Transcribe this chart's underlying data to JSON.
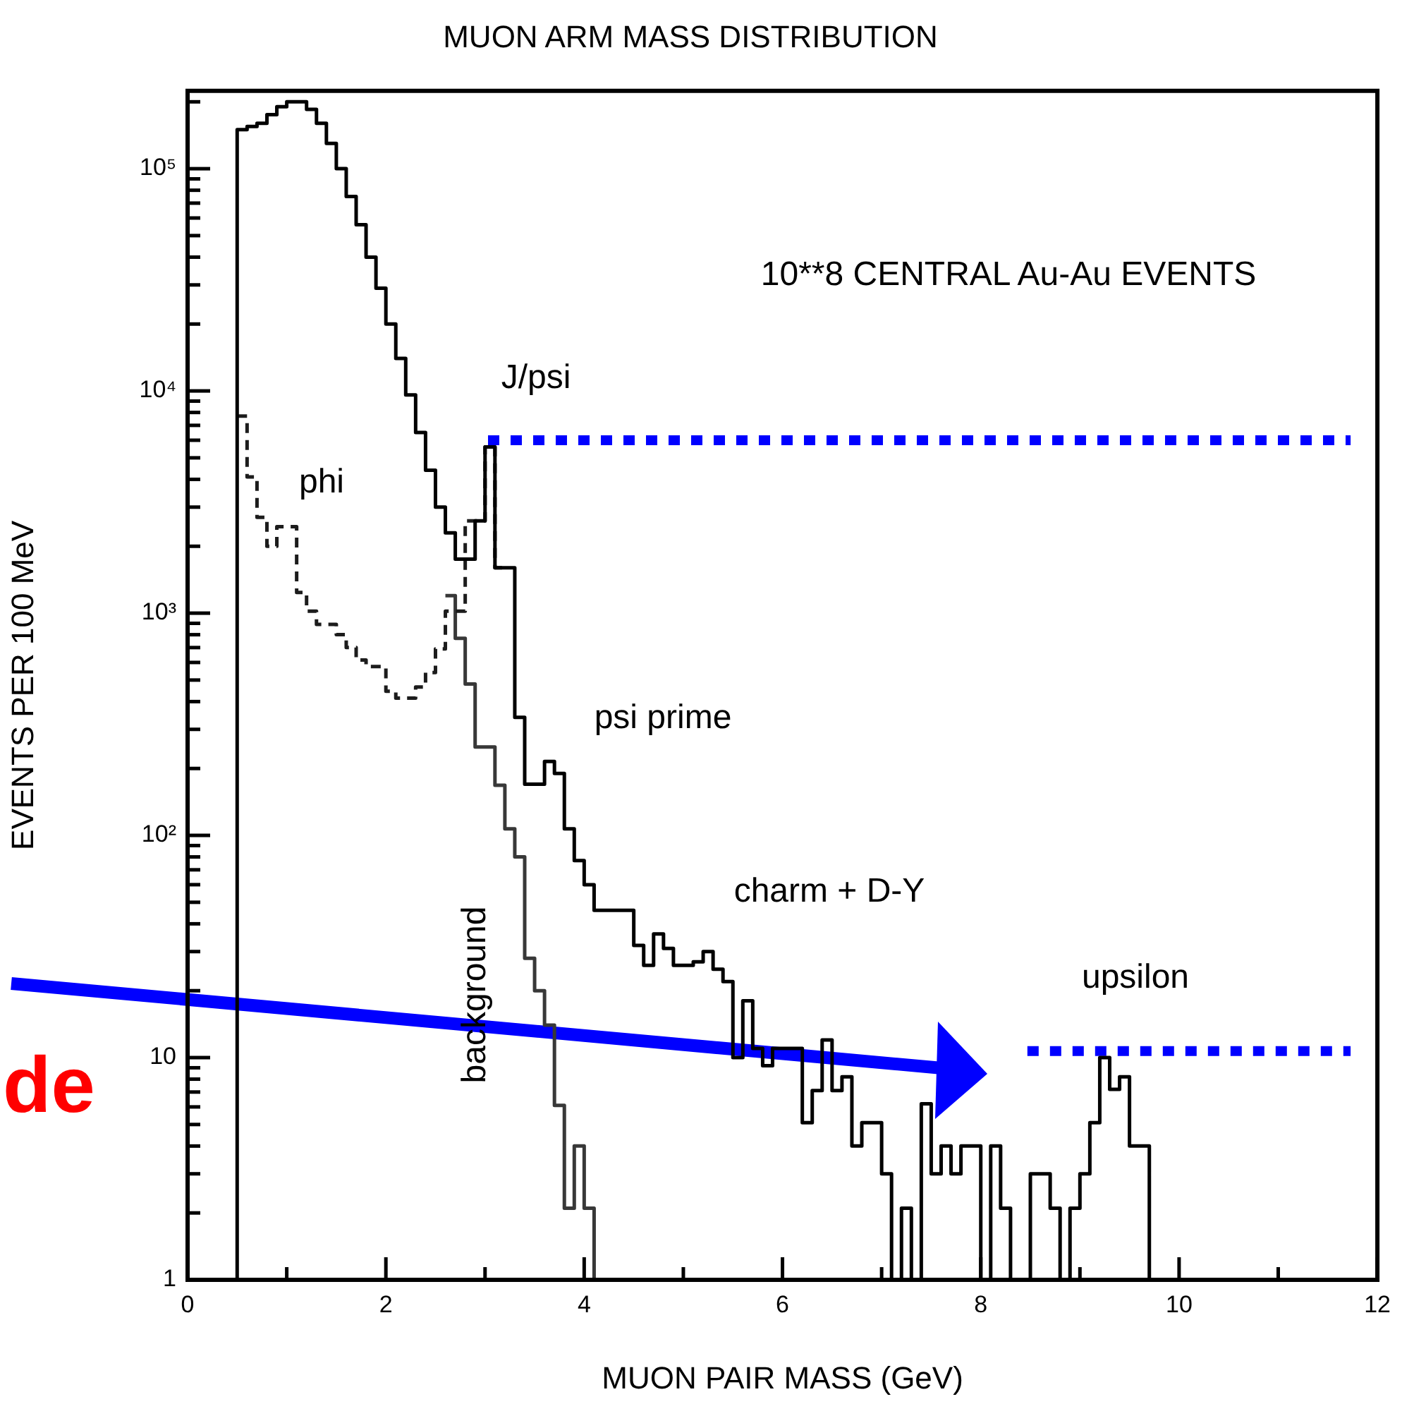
{
  "chart_data": {
    "type": "histogram",
    "title": "MUON ARM MASS DISTRIBUTION",
    "xlabel": "MUON PAIR MASS (GeV)",
    "ylabel": "EVENTS PER 100 MeV",
    "log": "y",
    "xlim": [
      0,
      12
    ],
    "ylim": [
      1,
      224000
    ],
    "xticks": [
      0,
      {
        "value": 1,
        "label": null
      },
      2,
      {
        "value": 3,
        "label": null
      },
      4,
      {
        "value": 5,
        "label": null
      },
      6,
      {
        "value": 7,
        "label": null
      },
      8,
      {
        "value": 9,
        "label": null
      },
      10,
      {
        "value": 11,
        "label": null
      },
      12
    ],
    "yticks": [
      1,
      {
        "value": 2,
        "label": null
      },
      {
        "value": 3,
        "label": null
      },
      {
        "value": 4,
        "label": null
      },
      {
        "value": 5,
        "label": null
      },
      {
        "value": 6,
        "label": null
      },
      {
        "value": 7,
        "label": null
      },
      {
        "value": 8,
        "label": null
      },
      {
        "value": 9,
        "label": null
      },
      10,
      {
        "value": 20,
        "label": null
      },
      {
        "value": 30,
        "label": null
      },
      {
        "value": 40,
        "label": null
      },
      {
        "value": 50,
        "label": null
      },
      {
        "value": 60,
        "label": null
      },
      {
        "value": 70,
        "label": null
      },
      {
        "value": 80,
        "label": null
      },
      {
        "value": 90,
        "label": null
      },
      {
        "value": 100,
        "label": "10²"
      },
      {
        "value": 200,
        "label": null
      },
      {
        "value": 300,
        "label": null
      },
      {
        "value": 400,
        "label": null
      },
      {
        "value": 500,
        "label": null
      },
      {
        "value": 600,
        "label": null
      },
      {
        "value": 700,
        "label": null
      },
      {
        "value": 800,
        "label": null
      },
      {
        "value": 900,
        "label": null
      },
      {
        "value": 1000,
        "label": "10³"
      },
      {
        "value": 2000,
        "label": null
      },
      {
        "value": 3000,
        "label": null
      },
      {
        "value": 4000,
        "label": null
      },
      {
        "value": 5000,
        "label": null
      },
      {
        "value": 6000,
        "label": null
      },
      {
        "value": 7000,
        "label": null
      },
      {
        "value": 8000,
        "label": null
      },
      {
        "value": 9000,
        "label": null
      },
      {
        "value": 10000,
        "label": "10⁴"
      },
      {
        "value": 20000,
        "label": null
      },
      {
        "value": 30000,
        "label": null
      },
      {
        "value": 40000,
        "label": null
      },
      {
        "value": 50000,
        "label": null
      },
      {
        "value": 60000,
        "label": null
      },
      {
        "value": 70000,
        "label": null
      },
      {
        "value": 80000,
        "label": null
      },
      {
        "value": 90000,
        "label": null
      },
      {
        "value": 100000,
        "label": "10⁵"
      },
      {
        "value": 200000,
        "label": null
      }
    ],
    "bins": [
      0.4,
      0.5,
      0.6,
      0.7,
      0.8,
      0.9,
      1.0,
      1.1,
      1.2,
      1.3,
      1.4,
      1.5,
      1.6,
      1.7,
      1.8,
      1.9,
      2.0,
      2.1,
      2.2,
      2.3,
      2.4,
      2.5,
      2.6,
      2.7,
      2.8,
      2.9,
      3.0,
      3.1,
      3.2,
      3.3,
      3.4,
      3.5,
      3.6,
      3.7,
      3.8,
      3.9,
      4.0,
      4.1,
      4.2,
      4.3,
      4.4,
      4.5,
      4.6,
      4.7,
      4.8,
      4.9,
      5.0,
      5.1,
      5.2,
      5.3,
      5.4,
      5.5,
      5.6,
      5.7,
      5.8,
      5.9,
      6.0,
      6.1,
      6.2,
      6.3,
      6.4,
      6.5,
      6.6,
      6.7,
      6.8,
      6.9,
      7.0,
      7.1,
      7.2,
      7.3,
      7.4,
      7.5,
      7.6,
      7.7,
      7.8,
      7.9,
      8.0,
      8.1,
      8.2,
      8.3,
      8.4,
      8.5,
      8.6,
      8.7,
      8.8,
      8.9,
      9.0,
      9.1,
      9.2,
      9.3,
      9.4,
      9.5,
      9.6,
      9.7,
      9.8
    ],
    "series": [
      {
        "color": "#000000",
        "line_style": "solid",
        "values": [
          1,
          150000,
          155000,
          160000,
          175000,
          190000,
          200000,
          200000,
          185000,
          160000,
          130000,
          100000,
          75000,
          56000,
          40000,
          29000,
          20000,
          14000,
          9600,
          6500,
          4400,
          3000,
          2300,
          1750,
          1750,
          2600,
          5600,
          1600,
          1600,
          340,
          170,
          170,
          215,
          190,
          107,
          77,
          60,
          46,
          46,
          46,
          46,
          32,
          26,
          36,
          31,
          26,
          26,
          27,
          30,
          25,
          22,
          10,
          18,
          11,
          9.2,
          11,
          11,
          11,
          5.1,
          7.1,
          12,
          7.1,
          8.2,
          4,
          5.1,
          5.1,
          3,
          1,
          2.1,
          1,
          6.2,
          3,
          4,
          3,
          4,
          4,
          1,
          4,
          2.1,
          1,
          1,
          3,
          3,
          2.1,
          1,
          2.1,
          3,
          5.1,
          10,
          7.2,
          8.2,
          4,
          4,
          1
        ]
      },
      {
        "color": "#1c1c1c",
        "line_style": "dashed",
        "bins": [
          0.5,
          0.6,
          0.7,
          0.8,
          0.9,
          1.0,
          1.1,
          1.2,
          1.3,
          1.4,
          1.5,
          1.6,
          1.7,
          1.8,
          1.9,
          2.0,
          2.1,
          2.2,
          2.3,
          2.4,
          2.5,
          2.6,
          2.7,
          2.8,
          2.9,
          3.0,
          3.1,
          3.2
        ],
        "values": [
          7700,
          4100,
          2700,
          2000,
          2450,
          2450,
          1240,
          1020,
          890,
          890,
          800,
          700,
          615,
          575,
          575,
          445,
          415,
          415,
          465,
          540,
          690,
          1020,
          1020,
          2600,
          2600,
          5600,
          1600
        ]
      },
      {
        "color": "#383838",
        "line_style": "solid",
        "bins": [
          2.6,
          2.7,
          2.8,
          2.9,
          3.0,
          3.1,
          3.2,
          3.3,
          3.4,
          3.5,
          3.6,
          3.7,
          3.8,
          3.9,
          4.0,
          4.1,
          4.2
        ],
        "values": [
          1200,
          770,
          480,
          250,
          250,
          168,
          107,
          80,
          28,
          20,
          14,
          6.1,
          2.1,
          4,
          2.1,
          1
        ]
      },
      {
        "type": "line",
        "color": "#0000ff",
        "line_style": "dotted",
        "x": [
          3.03,
          11.73
        ],
        "values": [
          6000,
          6000
        ]
      },
      {
        "type": "line",
        "color": "#0000ff",
        "line_style": "dotted",
        "x": [
          8.47,
          11.73
        ],
        "values": [
          10.7,
          10.7
        ]
      }
    ],
    "annotations": [
      "phi",
      "J/psi",
      "psi prime",
      "charm + D-Y",
      "upsilon",
      "10**8 CENTRAL Au-Au EVENTS",
      "background",
      "de"
    ]
  }
}
